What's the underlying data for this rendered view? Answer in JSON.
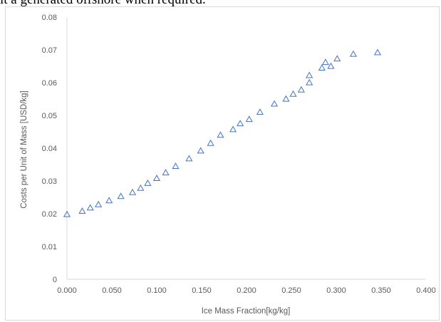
{
  "top_text": "it a generated offshore when required.",
  "chart_data": {
    "type": "scatter",
    "title": "",
    "xlabel": "Ice Mass Fraction[kg/kg]",
    "ylabel": "Costs per Unit of Mass [USD/kg]",
    "xlim": [
      0,
      0.4
    ],
    "ylim": [
      0,
      0.08
    ],
    "x_ticks": [
      "0.000",
      "0.050",
      "0.100",
      "0.150",
      "0.200",
      "0.250",
      "0.300",
      "0.350",
      "0.400"
    ],
    "y_ticks": [
      "0",
      "0.01",
      "0.02",
      "0.03",
      "0.04",
      "0.05",
      "0.06",
      "0.07",
      "0.08"
    ],
    "grid": false,
    "marker": "triangle-open",
    "marker_color": "#4472c4",
    "series": [
      {
        "x": [
          0.0,
          0.017,
          0.026,
          0.035,
          0.047,
          0.06,
          0.073,
          0.082,
          0.09,
          0.1,
          0.11,
          0.121,
          0.136,
          0.149,
          0.16,
          0.171,
          0.185,
          0.193,
          0.203,
          0.215,
          0.231,
          0.244,
          0.252,
          0.261,
          0.27,
          0.27,
          0.284,
          0.288,
          0.294,
          0.301,
          0.319,
          0.346
        ],
        "y": [
          0.0198,
          0.0208,
          0.0218,
          0.0228,
          0.024,
          0.0253,
          0.0265,
          0.0278,
          0.0293,
          0.0308,
          0.0325,
          0.0345,
          0.0368,
          0.0392,
          0.0415,
          0.044,
          0.0457,
          0.0475,
          0.0488,
          0.051,
          0.0535,
          0.055,
          0.0565,
          0.0578,
          0.06,
          0.0622,
          0.0645,
          0.0662,
          0.065,
          0.0673,
          0.0687,
          0.0692
        ]
      }
    ]
  }
}
